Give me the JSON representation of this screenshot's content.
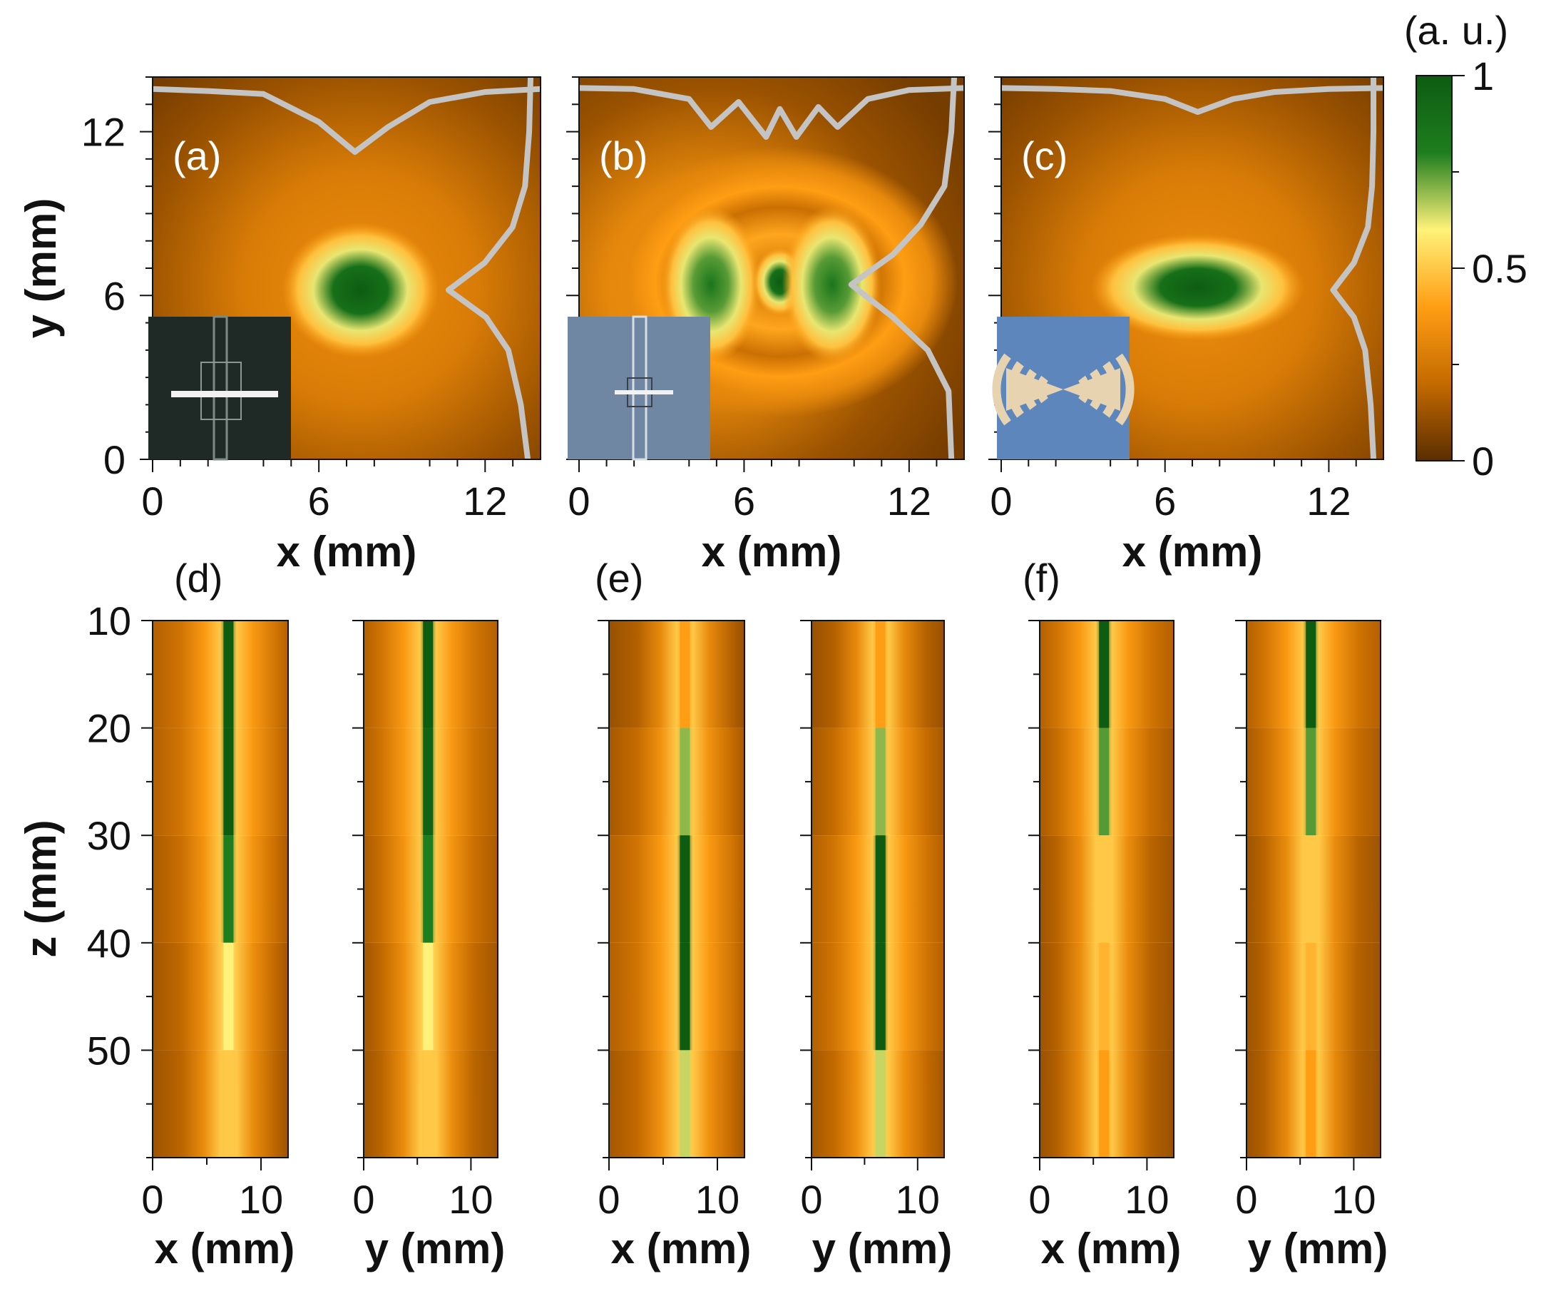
{
  "colorbar": {
    "unit": "(a. u.)",
    "ticks": [
      "1",
      "0.5",
      "0"
    ],
    "colors": [
      "#5a2e00",
      "#c46a00",
      "#ff9e14",
      "#fff27a",
      "#1e7d1e",
      "#0d5c12"
    ]
  },
  "chart_data": [
    {
      "type": "heatmap",
      "panel": "(a)",
      "xlabel": "x (mm)",
      "ylabel": "y (mm)",
      "xlim": [
        0,
        14
      ],
      "ylim": [
        0,
        14
      ],
      "xticks": [
        "0",
        "6",
        "12"
      ],
      "yticks": [
        "0",
        "6",
        "12"
      ],
      "focal_spots": [
        {
          "x": 7.5,
          "y": 6.2,
          "peak": 1.0,
          "sigma_x": 1.4,
          "sigma_y": 1.2
        }
      ],
      "x_profile": [
        [
          0,
          0.02
        ],
        [
          2,
          0.04
        ],
        [
          4,
          0.07
        ],
        [
          6,
          0.35
        ],
        [
          7.3,
          0.65
        ],
        [
          8.5,
          0.4
        ],
        [
          10,
          0.15
        ],
        [
          12,
          0.05
        ],
        [
          14,
          0.02
        ]
      ],
      "y_profile": [
        [
          0,
          0.03
        ],
        [
          2,
          0.08
        ],
        [
          4,
          0.17
        ],
        [
          5.2,
          0.33
        ],
        [
          6.2,
          0.6
        ],
        [
          7.2,
          0.34
        ],
        [
          8.5,
          0.14
        ],
        [
          10,
          0.05
        ],
        [
          12,
          0.02
        ],
        [
          14,
          0.01
        ]
      ]
    },
    {
      "type": "heatmap",
      "panel": "(b)",
      "xlabel": "x (mm)",
      "ylabel": "",
      "xlim": [
        0,
        14
      ],
      "ylim": [
        0,
        14
      ],
      "xticks": [
        "0",
        "6",
        "12"
      ],
      "yticks": [],
      "focal_spots": [
        {
          "x": 4.8,
          "y": 6.4,
          "peak": 0.85
        },
        {
          "x": 7.3,
          "y": 6.5,
          "peak": 1.0
        },
        {
          "x": 9.2,
          "y": 6.4,
          "peak": 0.85
        }
      ],
      "x_profile": [
        [
          0,
          0.01
        ],
        [
          2,
          0.02
        ],
        [
          4,
          0.12
        ],
        [
          4.8,
          0.4
        ],
        [
          5.8,
          0.15
        ],
        [
          6.8,
          0.5
        ],
        [
          7.3,
          0.22
        ],
        [
          7.9,
          0.5
        ],
        [
          8.7,
          0.2
        ],
        [
          9.4,
          0.4
        ],
        [
          10.5,
          0.12
        ],
        [
          12,
          0.03
        ],
        [
          14,
          0.01
        ]
      ],
      "y_profile": [
        [
          0,
          0.03
        ],
        [
          2.5,
          0.05
        ],
        [
          4,
          0.2
        ],
        [
          5.2,
          0.45
        ],
        [
          6.4,
          0.75
        ],
        [
          7.5,
          0.45
        ],
        [
          8.6,
          0.25
        ],
        [
          10,
          0.08
        ],
        [
          12,
          0.03
        ],
        [
          14,
          0.01
        ]
      ]
    },
    {
      "type": "heatmap",
      "panel": "(c)",
      "xlabel": "x (mm)",
      "ylabel": "",
      "xlim": [
        0,
        14
      ],
      "ylim": [
        0,
        14
      ],
      "xticks": [
        "0",
        "6",
        "12"
      ],
      "yticks": [],
      "focal_spots": [
        {
          "x": 7.2,
          "y": 6.3,
          "peak": 1.0
        }
      ],
      "x_profile": [
        [
          0,
          0.01
        ],
        [
          2,
          0.02
        ],
        [
          4,
          0.04
        ],
        [
          6,
          0.12
        ],
        [
          7.2,
          0.25
        ],
        [
          8.5,
          0.12
        ],
        [
          10,
          0.05
        ],
        [
          12,
          0.02
        ],
        [
          14,
          0.01
        ]
      ],
      "y_profile": [
        [
          0,
          0.01
        ],
        [
          2,
          0.03
        ],
        [
          4,
          0.07
        ],
        [
          5.2,
          0.15
        ],
        [
          6.2,
          0.3
        ],
        [
          7.2,
          0.15
        ],
        [
          8.5,
          0.05
        ],
        [
          10,
          0.02
        ],
        [
          12,
          0.01
        ],
        [
          14,
          0.01
        ]
      ]
    },
    {
      "type": "heatmap",
      "panel": "(d)",
      "subpanels": [
        {
          "xlabel": "x (mm)",
          "center": 7,
          "strips": [
            {
              "z": [
                10,
                20
              ],
              "peak": 1.0
            },
            {
              "z": [
                20,
                30
              ],
              "peak": 1.0
            },
            {
              "z": [
                30,
                40
              ],
              "peak": 0.8
            },
            {
              "z": [
                40,
                50
              ],
              "peak": 0.6
            },
            {
              "z": [
                50,
                60
              ],
              "peak": 0.5
            }
          ]
        },
        {
          "xlabel": "y (mm)",
          "center": 6,
          "strips": [
            {
              "z": [
                10,
                20
              ],
              "peak": 1.0
            },
            {
              "z": [
                20,
                30
              ],
              "peak": 0.95
            },
            {
              "z": [
                30,
                40
              ],
              "peak": 0.8
            },
            {
              "z": [
                40,
                50
              ],
              "peak": 0.6
            },
            {
              "z": [
                50,
                60
              ],
              "peak": 0.5
            }
          ]
        }
      ],
      "ylabel": "z (mm)",
      "ylim": [
        10,
        60
      ],
      "xlim": [
        0,
        12.5
      ],
      "xticks": [
        "0",
        "10"
      ],
      "yticks": [
        "10",
        "20",
        "30",
        "40",
        "50"
      ]
    },
    {
      "type": "heatmap",
      "panel": "(e)",
      "subpanels": [
        {
          "xlabel": "x (mm)",
          "center": 7,
          "strips": [
            {
              "z": [
                10,
                20
              ],
              "peak": 0.4
            },
            {
              "z": [
                20,
                30
              ],
              "peak": 0.7
            },
            {
              "z": [
                30,
                40
              ],
              "peak": 1.0
            },
            {
              "z": [
                40,
                50
              ],
              "peak": 1.0
            },
            {
              "z": [
                50,
                60
              ],
              "peak": 0.65
            }
          ]
        },
        {
          "xlabel": "y (mm)",
          "center": 6.5,
          "strips": [
            {
              "z": [
                10,
                20
              ],
              "peak": 0.4
            },
            {
              "z": [
                20,
                30
              ],
              "peak": 0.7
            },
            {
              "z": [
                30,
                40
              ],
              "peak": 1.0
            },
            {
              "z": [
                40,
                50
              ],
              "peak": 1.0
            },
            {
              "z": [
                50,
                60
              ],
              "peak": 0.65
            }
          ]
        }
      ],
      "ylabel": "",
      "ylim": [
        10,
        60
      ],
      "xlim": [
        0,
        12.5
      ],
      "xticks": [
        "0",
        "10"
      ],
      "yticks": []
    },
    {
      "type": "heatmap",
      "panel": "(f)",
      "subpanels": [
        {
          "xlabel": "x (mm)",
          "center": 6,
          "strips": [
            {
              "z": [
                10,
                20
              ],
              "peak": 1.0
            },
            {
              "z": [
                20,
                30
              ],
              "peak": 0.75
            },
            {
              "z": [
                30,
                40
              ],
              "peak": 0.5
            },
            {
              "z": [
                40,
                50
              ],
              "peak": 0.45
            },
            {
              "z": [
                50,
                60
              ],
              "peak": 0.4
            }
          ]
        },
        {
          "xlabel": "y (mm)",
          "center": 6,
          "strips": [
            {
              "z": [
                10,
                20
              ],
              "peak": 1.0
            },
            {
              "z": [
                20,
                30
              ],
              "peak": 0.75
            },
            {
              "z": [
                30,
                40
              ],
              "peak": 0.5
            },
            {
              "z": [
                40,
                50
              ],
              "peak": 0.45
            },
            {
              "z": [
                50,
                60
              ],
              "peak": 0.4
            }
          ]
        }
      ],
      "ylabel": "",
      "ylim": [
        10,
        60
      ],
      "xlim": [
        0,
        12.5
      ],
      "xticks": [
        "0",
        "10"
      ],
      "yticks": []
    }
  ]
}
